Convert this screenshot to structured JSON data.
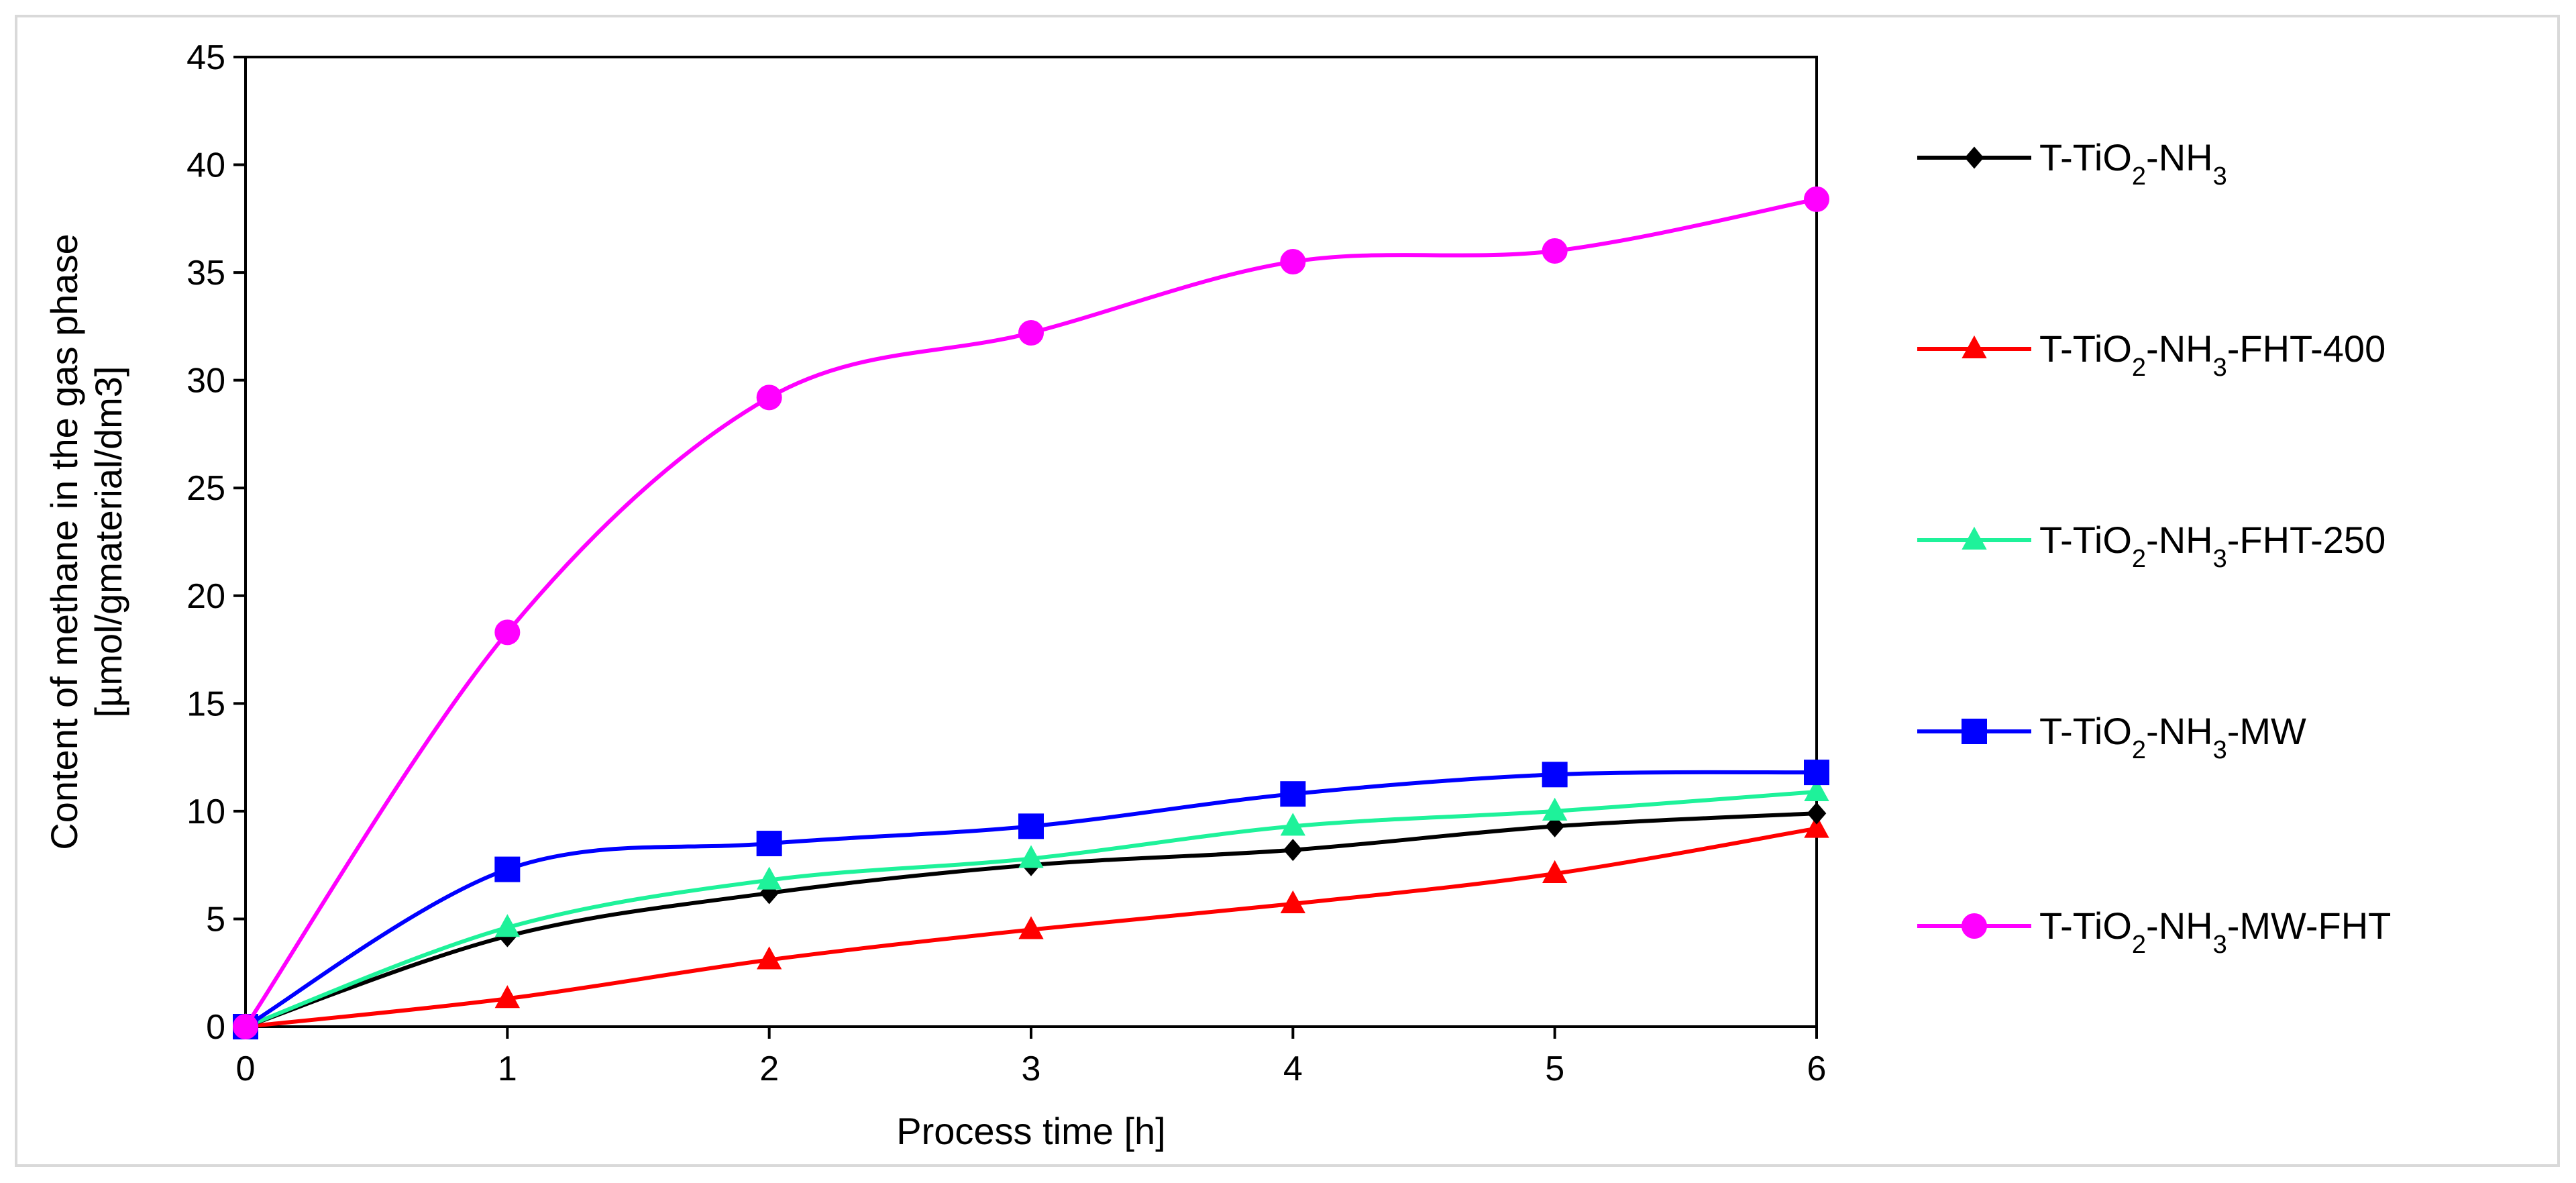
{
  "chart_data": {
    "type": "line",
    "title": "",
    "xlabel": "Process time [h]",
    "ylabel_lines": [
      "Content of methane in the gas phase",
      "[µmol/gmaterial/dm3]"
    ],
    "xlim": [
      0,
      6
    ],
    "ylim": [
      0,
      45
    ],
    "xticks": [
      "0",
      "1",
      "2",
      "3",
      "4",
      "5",
      "6"
    ],
    "yticks": [
      "0",
      "5",
      "10",
      "15",
      "20",
      "25",
      "30",
      "35",
      "40",
      "45"
    ],
    "grid": false,
    "legend_position": "right",
    "x": [
      0,
      1,
      2,
      3,
      4,
      5,
      6
    ],
    "series": [
      {
        "name": "T-TiO2-NH3",
        "label_parts": [
          {
            "t": "T-TiO"
          },
          {
            "t": "2",
            "sub": true
          },
          {
            "t": "-NH"
          },
          {
            "t": "3",
            "sub": true
          }
        ],
        "color": "#000000",
        "marker": "diamond",
        "values": [
          0,
          4.2,
          6.2,
          7.5,
          8.2,
          9.3,
          9.9
        ]
      },
      {
        "name": "T-TiO2-NH3-FHT-400",
        "label_parts": [
          {
            "t": "T-TiO"
          },
          {
            "t": "2",
            "sub": true
          },
          {
            "t": "-NH"
          },
          {
            "t": "3",
            "sub": true
          },
          {
            "t": "-FHT-400"
          }
        ],
        "color": "#ff0000",
        "marker": "triangle",
        "values": [
          0,
          1.3,
          3.1,
          4.5,
          5.7,
          7.1,
          9.2
        ]
      },
      {
        "name": "T-TiO2-NH3-FHT-250",
        "label_parts": [
          {
            "t": "T-TiO"
          },
          {
            "t": "2",
            "sub": true
          },
          {
            "t": "-NH"
          },
          {
            "t": "3",
            "sub": true
          },
          {
            "t": "-FHT-250"
          }
        ],
        "color": "#1ef29a",
        "marker": "triangle",
        "values": [
          0,
          4.6,
          6.8,
          7.8,
          9.3,
          10.0,
          10.9
        ]
      },
      {
        "name": "T-TiO2-NH3-MW",
        "label_parts": [
          {
            "t": "T-TiO"
          },
          {
            "t": "2",
            "sub": true
          },
          {
            "t": "-NH"
          },
          {
            "t": "3",
            "sub": true
          },
          {
            "t": "-MW"
          }
        ],
        "color": "#0000ff",
        "marker": "square",
        "values": [
          0,
          7.3,
          8.5,
          9.3,
          10.8,
          11.7,
          11.8
        ]
      },
      {
        "name": "T-TiO2-NH3-MW-FHT",
        "label_parts": [
          {
            "t": "T-TiO"
          },
          {
            "t": "2",
            "sub": true
          },
          {
            "t": "-NH"
          },
          {
            "t": "3",
            "sub": true
          },
          {
            "t": "-MW-FHT"
          }
        ],
        "color": "#ff00ff",
        "marker": "circle",
        "values": [
          0,
          18.3,
          29.2,
          32.2,
          35.5,
          36.0,
          38.4
        ]
      }
    ]
  }
}
